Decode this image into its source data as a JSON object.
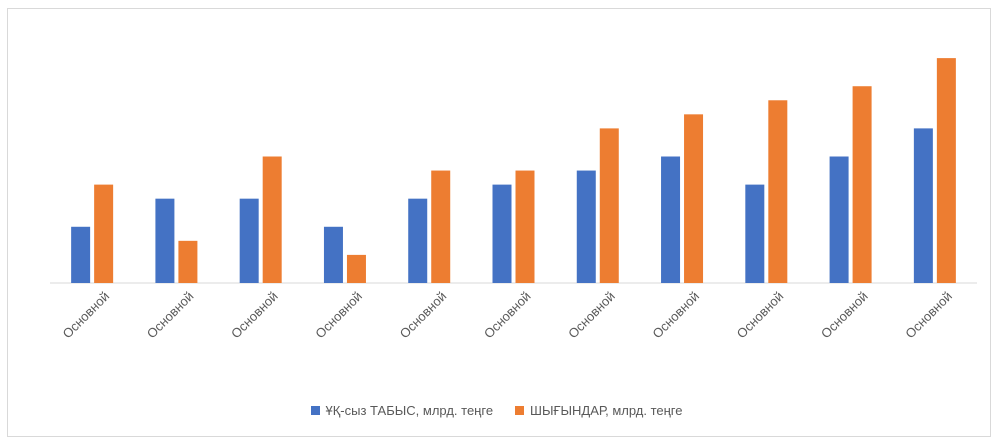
{
  "chart_data": {
    "type": "bar",
    "categories": [
      "Основной",
      "Основной",
      "Основной",
      "Основной",
      "Основной",
      "Основной",
      "Основной",
      "Основной",
      "Основной",
      "Основной",
      "Основной"
    ],
    "series": [
      {
        "name": "ҰҚ-сыз ТАБЫС, млрд. теңге",
        "color": "#4472c4",
        "values": [
          4,
          6,
          6,
          4,
          6,
          7,
          8,
          9,
          7,
          9,
          11
        ]
      },
      {
        "name": "ШЫҒЫНДАР, млрд. теңге",
        "color": "#ed7d31",
        "values": [
          7,
          3,
          9,
          2,
          8,
          8,
          11,
          12,
          13,
          14,
          16
        ]
      }
    ],
    "ylim": [
      0,
      18
    ],
    "grid": false,
    "legend_position": "bottom"
  }
}
